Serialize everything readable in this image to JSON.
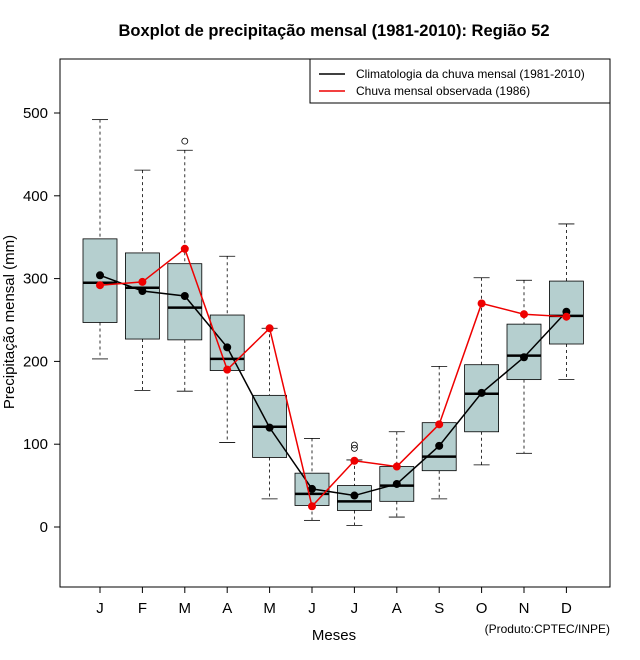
{
  "chart_data": {
    "type": "boxplot",
    "title": "Boxplot de precipitação mensal (1981-2010): Região 52",
    "xlabel": "Meses",
    "ylabel": "Precipitação mensal (mm)",
    "ylim": [
      -70,
      570
    ],
    "yticks": [
      0,
      100,
      200,
      300,
      400,
      500
    ],
    "categories": [
      "J",
      "F",
      "M",
      "A",
      "M",
      "J",
      "J",
      "A",
      "S",
      "O",
      "N",
      "D"
    ],
    "boxes": [
      {
        "whisker_low": 203,
        "q1": 247,
        "median": 295,
        "q3": 348,
        "whisker_high": 492,
        "outliers": []
      },
      {
        "whisker_low": 165,
        "q1": 227,
        "median": 289,
        "q3": 331,
        "whisker_high": 431,
        "outliers": []
      },
      {
        "whisker_low": 164,
        "q1": 226,
        "median": 265,
        "q3": 318,
        "whisker_high": 455,
        "outliers": [
          466
        ]
      },
      {
        "whisker_low": 102,
        "q1": 189,
        "median": 203,
        "q3": 256,
        "whisker_high": 327,
        "outliers": []
      },
      {
        "whisker_low": 34,
        "q1": 84,
        "median": 121,
        "q3": 159,
        "whisker_high": 240,
        "outliers": []
      },
      {
        "whisker_low": 8,
        "q1": 26,
        "median": 40,
        "q3": 65,
        "whisker_high": 107,
        "outliers": []
      },
      {
        "whisker_low": 2,
        "q1": 20,
        "median": 31,
        "q3": 50,
        "whisker_high": 81,
        "outliers": [
          95,
          99
        ]
      },
      {
        "whisker_low": 12,
        "q1": 31,
        "median": 50,
        "q3": 73,
        "whisker_high": 115,
        "outliers": []
      },
      {
        "whisker_low": 34,
        "q1": 68,
        "median": 85,
        "q3": 126,
        "whisker_high": 194,
        "outliers": []
      },
      {
        "whisker_low": 75,
        "q1": 115,
        "median": 161,
        "q3": 196,
        "whisker_high": 301,
        "outliers": []
      },
      {
        "whisker_low": 89,
        "q1": 178,
        "median": 207,
        "q3": 245,
        "whisker_high": 298,
        "outliers": []
      },
      {
        "whisker_low": 178,
        "q1": 221,
        "median": 255,
        "q3": 297,
        "whisker_high": 366,
        "outliers": []
      }
    ],
    "series": [
      {
        "name": "Climatologia da chuva mensal (1981-2010)",
        "color": "#000000",
        "values": [
          304,
          285,
          279,
          217,
          120,
          46,
          38,
          52,
          98,
          162,
          205,
          260
        ]
      },
      {
        "name": "Chuva mensal observada (1986)",
        "color": "#ee0000",
        "values": [
          292,
          296,
          336,
          190,
          240,
          25,
          80,
          73,
          124,
          270,
          257,
          254
        ]
      }
    ],
    "box_fill": "#b5cfcf",
    "legend_position": "top-right",
    "credit": "(Produto:CPTEC/INPE)"
  }
}
